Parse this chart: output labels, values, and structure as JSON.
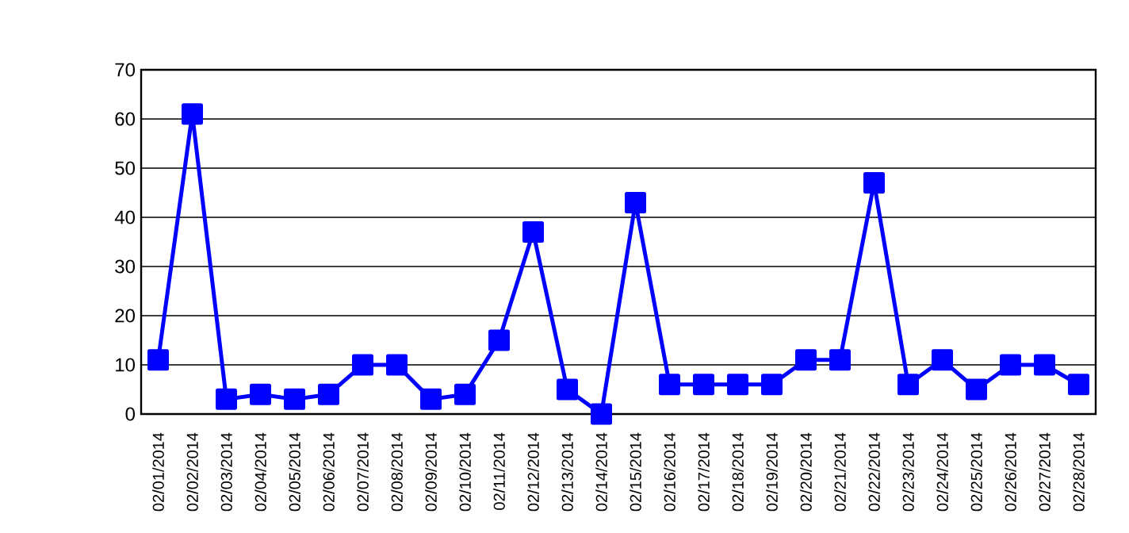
{
  "chart_data": {
    "type": "line",
    "categories": [
      "02/01/2014",
      "02/02/2014",
      "02/03/2014",
      "02/04/2014",
      "02/05/2014",
      "02/06/2014",
      "02/07/2014",
      "02/08/2014",
      "02/09/2014",
      "02/10/2014",
      "02/11/2014",
      "02/12/2014",
      "02/13/2014",
      "02/14/2014",
      "02/15/2014",
      "02/16/2014",
      "02/17/2014",
      "02/18/2014",
      "02/19/2014",
      "02/20/2014",
      "02/21/2014",
      "02/22/2014",
      "02/23/2014",
      "02/24/2014",
      "02/25/2014",
      "02/26/2014",
      "02/27/2014",
      "02/28/2014"
    ],
    "series": [
      {
        "color": "#0000ff",
        "values": [
          11,
          61,
          3,
          4,
          3,
          4,
          10,
          10,
          3,
          4,
          15,
          37,
          5,
          0,
          43,
          6,
          6,
          6,
          6,
          11,
          11,
          47,
          6,
          11,
          5,
          10,
          10,
          6
        ]
      }
    ],
    "ylim": [
      0,
      70
    ],
    "yticks": [
      0,
      10,
      20,
      30,
      40,
      50,
      60,
      70
    ],
    "grid": "y",
    "marker": "square",
    "line_style": "solid"
  }
}
